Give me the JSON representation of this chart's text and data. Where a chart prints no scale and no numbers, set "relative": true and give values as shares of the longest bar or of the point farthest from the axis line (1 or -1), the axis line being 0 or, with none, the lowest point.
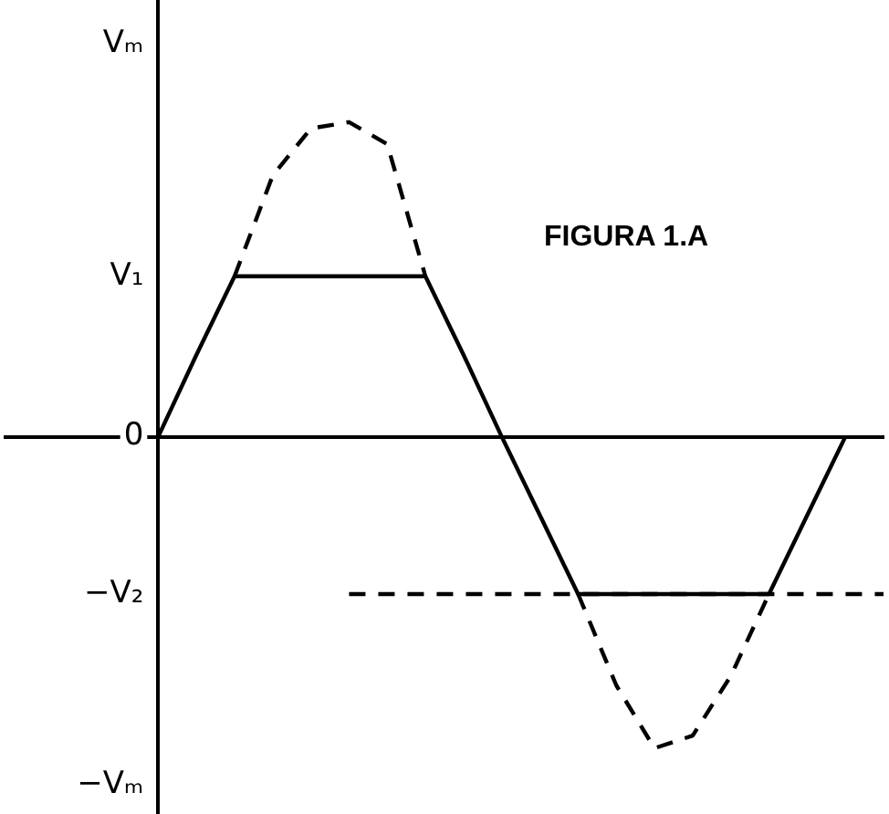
{
  "chart_data": {
    "type": "line",
    "relative": true,
    "annotations": [
      "FIGURA 1.A",
      "Vₘ",
      {
        "text": "V₁",
        "y": 0.51
      },
      {
        "text": "0",
        "y": 0
      },
      {
        "text": "−V₂",
        "y": -0.5
      },
      "−Vₘ"
    ],
    "categories": [
      null,
      null,
      null,
      null,
      null,
      null,
      null,
      null,
      null,
      null,
      null,
      null,
      null,
      null,
      null,
      null,
      null,
      null,
      null,
      null,
      null,
      null,
      null,
      null
    ],
    "legend": false,
    "grid": false,
    "marker": "none",
    "series": [
      {
        "color": "#000000",
        "line_style": "solid",
        "values": [
          null,
          null,
          null,
          null,
          0,
          0.26,
          0.51,
          0.51,
          0.51,
          0.51,
          0.51,
          0.51,
          0.26,
          0,
          -0.25,
          -0.5,
          -0.5,
          -0.5,
          -0.5,
          -0.5,
          -0.5,
          -0.25,
          0,
          null
        ]
      },
      {
        "color": "#000000",
        "line_style": "dashed",
        "values": [
          null,
          null,
          null,
          null,
          null,
          null,
          0.51,
          0.83,
          0.98,
          1,
          0.93,
          0.51,
          null,
          null,
          null,
          null,
          null,
          null,
          null,
          null,
          null,
          null,
          null,
          null
        ]
      },
      {
        "color": "#000000",
        "line_style": "dashed",
        "values": [
          null,
          null,
          null,
          null,
          null,
          null,
          null,
          null,
          null,
          null,
          null,
          null,
          null,
          null,
          null,
          -0.5,
          -0.79,
          -0.99,
          -0.95,
          -0.76,
          -0.5,
          null,
          null,
          null
        ]
      },
      {
        "color": "#000000",
        "line_style": "dashed",
        "values": [
          null,
          null,
          null,
          null,
          null,
          null,
          null,
          null,
          null,
          -0.5,
          -0.5,
          -0.5,
          -0.5,
          -0.5,
          -0.5,
          -0.5,
          -0.5,
          -0.5,
          -0.5,
          -0.5,
          -0.5,
          -0.5,
          -0.5,
          -0.5
        ]
      }
    ]
  }
}
